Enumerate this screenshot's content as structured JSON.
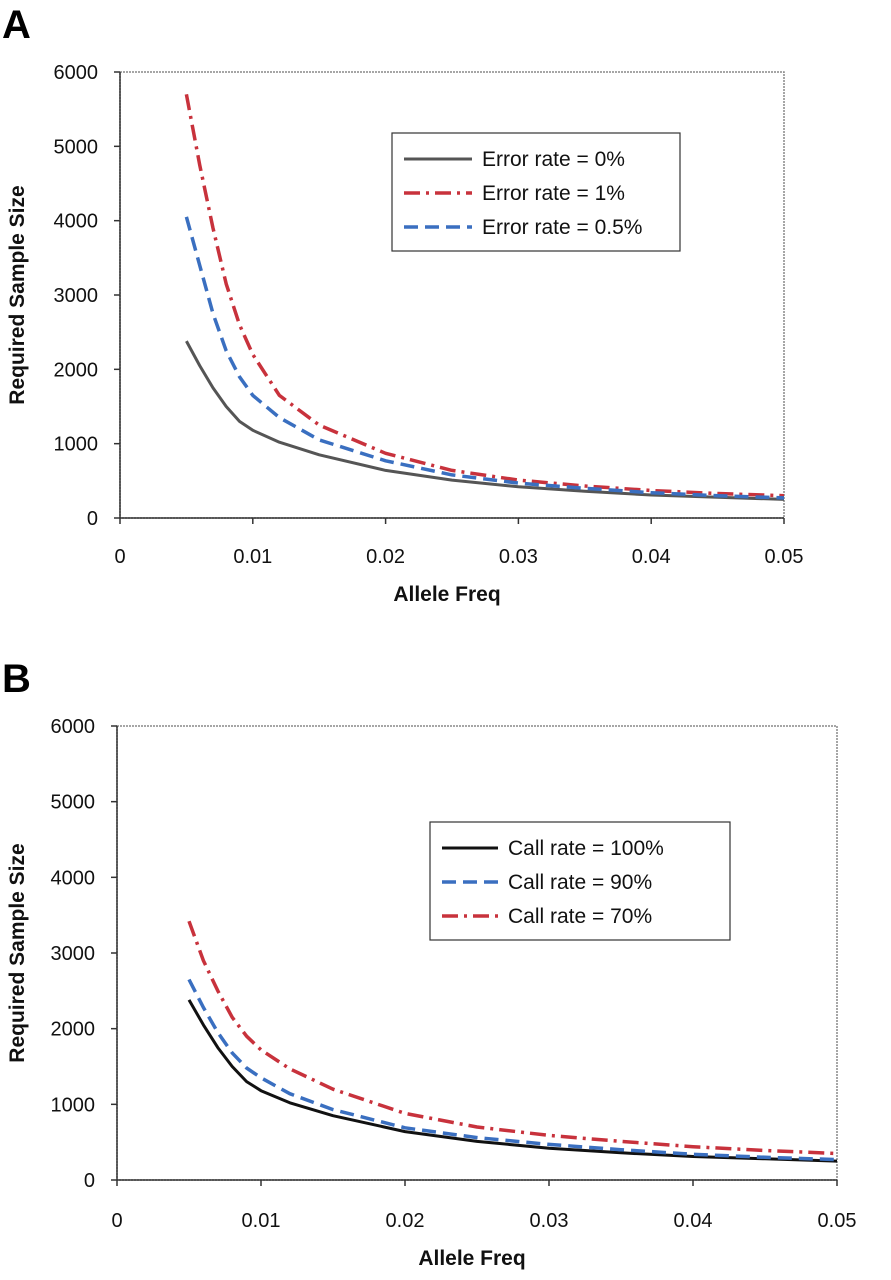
{
  "chart_data": [
    {
      "type": "line",
      "panel": "A",
      "xlabel": "Allele Freq",
      "ylabel": "Required Sample Size",
      "xlim": [
        0,
        0.05
      ],
      "ylim": [
        0,
        6000
      ],
      "xticks": [
        "0",
        "0.01",
        "0.02",
        "0.03",
        "0.04",
        "0.05"
      ],
      "yticks": [
        "0",
        "1000",
        "2000",
        "3000",
        "4000",
        "5000",
        "6000"
      ],
      "grid": false,
      "legend_position": "top-right",
      "series": [
        {
          "name": "Error rate = 0%",
          "color": "#555555",
          "style": "solid",
          "x": [
            0.005,
            0.006,
            0.007,
            0.008,
            0.009,
            0.01,
            0.012,
            0.015,
            0.02,
            0.025,
            0.03,
            0.035,
            0.04,
            0.045,
            0.05
          ],
          "y": [
            2380,
            2050,
            1750,
            1500,
            1300,
            1180,
            1020,
            850,
            640,
            510,
            420,
            360,
            310,
            280,
            250
          ]
        },
        {
          "name": "Error rate = 1%",
          "color": "#c8323c",
          "style": "dashdot",
          "x": [
            0.005,
            0.006,
            0.007,
            0.008,
            0.009,
            0.01,
            0.012,
            0.015,
            0.02,
            0.025,
            0.03,
            0.035,
            0.04,
            0.045,
            0.05
          ],
          "y": [
            5700,
            4750,
            3900,
            3150,
            2600,
            2200,
            1650,
            1250,
            870,
            640,
            510,
            430,
            370,
            330,
            300
          ]
        },
        {
          "name": "Error rate = 0.5%",
          "color": "#3a6fc0",
          "style": "dashed",
          "x": [
            0.005,
            0.006,
            0.007,
            0.008,
            0.009,
            0.01,
            0.012,
            0.015,
            0.02,
            0.025,
            0.03,
            0.035,
            0.04,
            0.045,
            0.05
          ],
          "y": [
            4050,
            3400,
            2750,
            2250,
            1900,
            1650,
            1350,
            1050,
            770,
            580,
            470,
            400,
            340,
            300,
            270
          ]
        }
      ]
    },
    {
      "type": "line",
      "panel": "B",
      "xlabel": "Allele Freq",
      "ylabel": "Required Sample Size",
      "xlim": [
        0,
        0.05
      ],
      "ylim": [
        0,
        6000
      ],
      "xticks": [
        "0",
        "0.01",
        "0.02",
        "0.03",
        "0.04",
        "0.05"
      ],
      "yticks": [
        "0",
        "1000",
        "2000",
        "3000",
        "4000",
        "5000",
        "6000"
      ],
      "grid": false,
      "legend_position": "middle-right",
      "series": [
        {
          "name": "Call rate = 100%",
          "color": "#111111",
          "style": "solid",
          "x": [
            0.005,
            0.006,
            0.007,
            0.008,
            0.009,
            0.01,
            0.012,
            0.015,
            0.02,
            0.025,
            0.03,
            0.035,
            0.04,
            0.045,
            0.05
          ],
          "y": [
            2380,
            2050,
            1750,
            1500,
            1300,
            1180,
            1020,
            850,
            640,
            510,
            420,
            360,
            310,
            280,
            250
          ]
        },
        {
          "name": "Call rate = 90%",
          "color": "#3a6fc0",
          "style": "dashed",
          "x": [
            0.005,
            0.006,
            0.007,
            0.008,
            0.009,
            0.01,
            0.012,
            0.015,
            0.02,
            0.025,
            0.03,
            0.035,
            0.04,
            0.045,
            0.05
          ],
          "y": [
            2650,
            2280,
            1950,
            1680,
            1480,
            1350,
            1140,
            930,
            690,
            560,
            470,
            400,
            340,
            300,
            270
          ]
        },
        {
          "name": "Call rate = 70%",
          "color": "#c8323c",
          "style": "dashdot",
          "x": [
            0.005,
            0.006,
            0.007,
            0.008,
            0.009,
            0.01,
            0.012,
            0.015,
            0.02,
            0.025,
            0.03,
            0.035,
            0.04,
            0.045,
            0.05
          ],
          "y": [
            3420,
            2900,
            2500,
            2150,
            1900,
            1720,
            1470,
            1200,
            880,
            700,
            590,
            510,
            440,
            390,
            350
          ]
        }
      ]
    }
  ]
}
